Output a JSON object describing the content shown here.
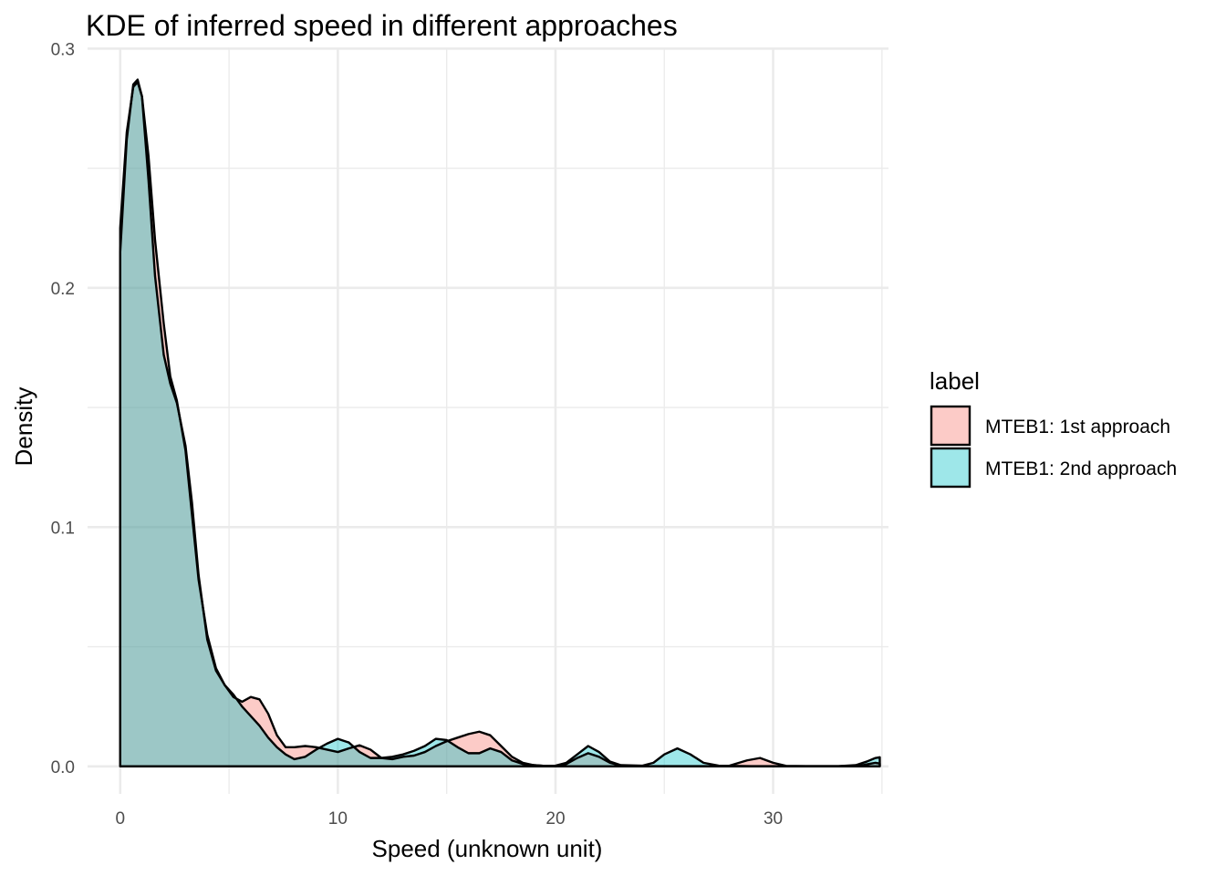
{
  "chart_data": {
    "type": "area",
    "title": "KDE of inferred speed in different approaches",
    "xlabel": "Speed (unknown unit)",
    "ylabel": "Density",
    "xlim": [
      -1.5,
      35.3
    ],
    "ylim": [
      -0.0115,
      0.3005
    ],
    "x_ticks": [
      0,
      10,
      20,
      30
    ],
    "y_ticks": [
      0.0,
      0.1,
      0.2,
      0.3
    ],
    "x_tick_labels": [
      "0",
      "10",
      "20",
      "30"
    ],
    "y_tick_labels": [
      "0.0",
      "0.1",
      "0.2",
      "0.3"
    ],
    "grid": true,
    "legend": {
      "title": "label",
      "position": "right"
    },
    "series": [
      {
        "name": "MTEB1: 1st approach",
        "color": "#F8766D",
        "points": [
          [
            0,
            0.225
          ],
          [
            0.3,
            0.265
          ],
          [
            0.6,
            0.284
          ],
          [
            0.8,
            0.286
          ],
          [
            1.0,
            0.28
          ],
          [
            1.3,
            0.255
          ],
          [
            1.6,
            0.22
          ],
          [
            2.0,
            0.185
          ],
          [
            2.3,
            0.163
          ],
          [
            2.6,
            0.153
          ],
          [
            3.0,
            0.132
          ],
          [
            3.3,
            0.105
          ],
          [
            3.6,
            0.078
          ],
          [
            4.0,
            0.055
          ],
          [
            4.4,
            0.041
          ],
          [
            4.8,
            0.034
          ],
          [
            5.2,
            0.029
          ],
          [
            5.6,
            0.027
          ],
          [
            6.0,
            0.029
          ],
          [
            6.4,
            0.028
          ],
          [
            6.8,
            0.022
          ],
          [
            7.2,
            0.013
          ],
          [
            7.6,
            0.008
          ],
          [
            8.0,
            0.008
          ],
          [
            8.5,
            0.0085
          ],
          [
            9.0,
            0.008
          ],
          [
            9.5,
            0.007
          ],
          [
            10.0,
            0.006
          ],
          [
            10.5,
            0.0075
          ],
          [
            11.0,
            0.0088
          ],
          [
            11.5,
            0.007
          ],
          [
            12.0,
            0.0035
          ],
          [
            12.5,
            0.003
          ],
          [
            13.0,
            0.004
          ],
          [
            13.5,
            0.0045
          ],
          [
            14.0,
            0.006
          ],
          [
            14.5,
            0.0085
          ],
          [
            15.0,
            0.0105
          ],
          [
            15.5,
            0.012
          ],
          [
            16.0,
            0.0135
          ],
          [
            16.5,
            0.0145
          ],
          [
            17.0,
            0.013
          ],
          [
            17.5,
            0.0085
          ],
          [
            18.0,
            0.004
          ],
          [
            18.5,
            0.0015
          ],
          [
            19.0,
            0.0005
          ],
          [
            19.5,
            0.0002
          ],
          [
            20.0,
            0.0002
          ],
          [
            20.5,
            0.001
          ],
          [
            21.0,
            0.0035
          ],
          [
            21.5,
            0.0055
          ],
          [
            22.0,
            0.004
          ],
          [
            22.5,
            0.0015
          ],
          [
            23.0,
            0.0003
          ],
          [
            24.0,
            0.0001
          ],
          [
            26.0,
            0.0001
          ],
          [
            27.0,
            0.0001
          ],
          [
            28.0,
            0.0003
          ],
          [
            28.8,
            0.0025
          ],
          [
            29.4,
            0.0035
          ],
          [
            30.0,
            0.0015
          ],
          [
            30.6,
            0.0002
          ],
          [
            31.5,
            0.0001
          ],
          [
            33.0,
            0.0001
          ],
          [
            34.0,
            0.0003
          ],
          [
            34.4,
            0.001
          ],
          [
            34.7,
            0.0015
          ],
          [
            34.9,
            0.0012
          ]
        ]
      },
      {
        "name": "MTEB1: 2nd approach",
        "color": "#00BFC4",
        "points": [
          [
            0,
            0.215
          ],
          [
            0.3,
            0.262
          ],
          [
            0.6,
            0.285
          ],
          [
            0.8,
            0.287
          ],
          [
            1.0,
            0.28
          ],
          [
            1.3,
            0.245
          ],
          [
            1.6,
            0.205
          ],
          [
            2.0,
            0.172
          ],
          [
            2.3,
            0.16
          ],
          [
            2.6,
            0.152
          ],
          [
            3.0,
            0.134
          ],
          [
            3.3,
            0.11
          ],
          [
            3.6,
            0.08
          ],
          [
            4.0,
            0.053
          ],
          [
            4.4,
            0.04
          ],
          [
            4.8,
            0.034
          ],
          [
            5.2,
            0.03
          ],
          [
            5.6,
            0.025
          ],
          [
            6.0,
            0.021
          ],
          [
            6.4,
            0.017
          ],
          [
            6.8,
            0.012
          ],
          [
            7.2,
            0.008
          ],
          [
            7.6,
            0.005
          ],
          [
            8.0,
            0.003
          ],
          [
            8.5,
            0.004
          ],
          [
            9.0,
            0.007
          ],
          [
            9.5,
            0.0095
          ],
          [
            10.0,
            0.0115
          ],
          [
            10.5,
            0.01
          ],
          [
            11.0,
            0.006
          ],
          [
            11.5,
            0.0035
          ],
          [
            12.0,
            0.0035
          ],
          [
            12.5,
            0.004
          ],
          [
            13.0,
            0.005
          ],
          [
            13.5,
            0.0065
          ],
          [
            14.0,
            0.0085
          ],
          [
            14.5,
            0.0115
          ],
          [
            15.0,
            0.011
          ],
          [
            15.5,
            0.008
          ],
          [
            16.0,
            0.0055
          ],
          [
            16.5,
            0.0055
          ],
          [
            17.0,
            0.0075
          ],
          [
            17.5,
            0.006
          ],
          [
            18.0,
            0.0025
          ],
          [
            18.5,
            0.001
          ],
          [
            19.0,
            0.0005
          ],
          [
            19.5,
            0.0002
          ],
          [
            20.0,
            0.0003
          ],
          [
            20.5,
            0.0015
          ],
          [
            21.0,
            0.005
          ],
          [
            21.5,
            0.0085
          ],
          [
            22.0,
            0.006
          ],
          [
            22.5,
            0.002
          ],
          [
            23.0,
            0.0005
          ],
          [
            24.0,
            0.0003
          ],
          [
            24.5,
            0.0015
          ],
          [
            25.0,
            0.005
          ],
          [
            25.6,
            0.0075
          ],
          [
            26.2,
            0.005
          ],
          [
            26.8,
            0.0015
          ],
          [
            27.5,
            0.0003
          ],
          [
            29.0,
            0.0001
          ],
          [
            31.0,
            0.0001
          ],
          [
            33.0,
            0.0001
          ],
          [
            33.8,
            0.0005
          ],
          [
            34.3,
            0.002
          ],
          [
            34.7,
            0.0035
          ],
          [
            34.9,
            0.0038
          ]
        ]
      }
    ]
  }
}
